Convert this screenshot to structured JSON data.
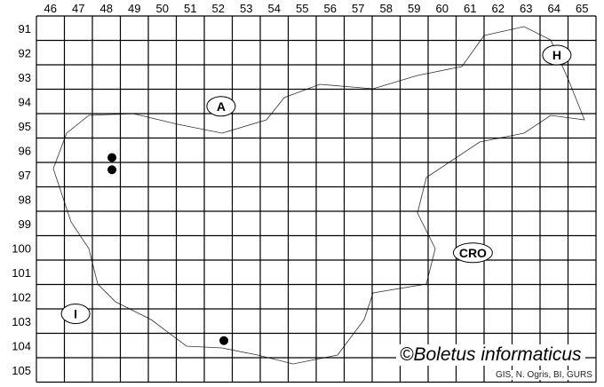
{
  "map": {
    "columns": [
      "46",
      "47",
      "48",
      "49",
      "50",
      "51",
      "52",
      "53",
      "54",
      "55",
      "56",
      "57",
      "58",
      "59",
      "60",
      "61",
      "62",
      "63",
      "64",
      "65"
    ],
    "rows": [
      "91",
      "92",
      "93",
      "94",
      "95",
      "96",
      "97",
      "98",
      "99",
      "100",
      "101",
      "102",
      "103",
      "104",
      "105"
    ],
    "points": [
      {
        "col": 48.7,
        "row": 96.8
      },
      {
        "col": 48.7,
        "row": 97.3
      },
      {
        "col": 52.7,
        "row": 104.3
      }
    ],
    "country_labels": [
      {
        "text": "A",
        "col": 52.6,
        "row": 94.7
      },
      {
        "text": "H",
        "col": 64.6,
        "row": 92.6
      },
      {
        "text": "CRO",
        "col": 61.6,
        "row": 100.7
      },
      {
        "text": "I",
        "col": 47.4,
        "row": 103.2
      }
    ],
    "point_color": "#000000"
  },
  "copyright": "©Boletus informaticus",
  "credit": "GIS, N. Ogris, BI, GURS"
}
